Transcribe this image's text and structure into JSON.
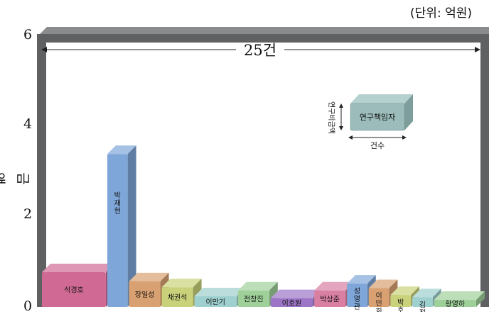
{
  "chart_data": {
    "type": "bar",
    "unit_note": "(단위: 억원)",
    "ylabel": "금액",
    "ylim": [
      0,
      6
    ],
    "y_ticks": [
      "0",
      "2",
      "4",
      "6"
    ],
    "count_label": "25건",
    "legend": {
      "box_label": "연구책임자",
      "height_label": "연구비금액",
      "width_label": "건수"
    },
    "categories": [
      "석경호",
      "박재현",
      "장일성",
      "채권석",
      "이만기",
      "전창진",
      "이호원",
      "박상준",
      "성영관",
      "이민희",
      "박호원",
      "김정수",
      "황영하"
    ],
    "counts": [
      3,
      1,
      1.5,
      1.5,
      2,
      1.5,
      2,
      1.5,
      1,
      1,
      1,
      1,
      2
    ],
    "values": [
      0.95,
      3.55,
      0.75,
      0.62,
      0.42,
      0.55,
      0.38,
      0.55,
      0.7,
      0.6,
      0.45,
      0.4,
      0.2
    ],
    "colors": {
      "석경호": "#d06a94",
      "박재현": "#7fa6d8",
      "장일성": "#d9a172",
      "채권석": "#c9d27a",
      "이만기": "#9ed0cf",
      "전창진": "#9fd09a",
      "이호원": "#9c75c6",
      "박상준": "#d97fa2",
      "성영관": "#7fa6d8",
      "이민희": "#d9a172",
      "박호원": "#c9d27a",
      "김정수": "#9ed0cf",
      "황영하": "#9fd09a"
    },
    "frame_color": "#5f6061",
    "legend_box_color": "#9bbcba"
  }
}
